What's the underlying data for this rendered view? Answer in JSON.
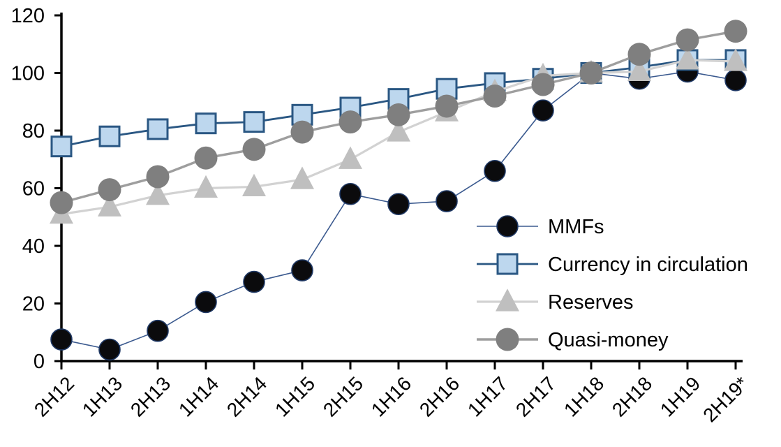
{
  "chart_data": {
    "type": "line",
    "title": "",
    "categories": [
      "2H12",
      "1H13",
      "2H13",
      "1H14",
      "2H14",
      "1H15",
      "2H15",
      "1H16",
      "2H16",
      "1H17",
      "2H17",
      "1H18",
      "2H18",
      "1H19",
      "2H19*"
    ],
    "series": [
      {
        "name": "MMFs",
        "marker": "circle",
        "marker_size": 30,
        "marker_fill": "#0b0b0d",
        "marker_edge": "#1f3864",
        "marker_edge_width": 1.6,
        "line_color": "#3b5a8f",
        "line_width": 1.6,
        "values": [
          7.5,
          4,
          10.5,
          20.5,
          27.5,
          31.5,
          58,
          54.5,
          55.5,
          66,
          87,
          100,
          98,
          100.5,
          97.5
        ]
      },
      {
        "name": "Currency in circulation",
        "marker": "square",
        "marker_size": 28,
        "marker_fill": "#bdd7ee",
        "marker_edge": "#2a5783",
        "marker_edge_width": 3,
        "line_color": "#2a5783",
        "line_width": 2.8,
        "values": [
          74.5,
          78,
          80.5,
          82.5,
          83,
          85.5,
          88,
          91,
          94.5,
          96.5,
          98,
          100,
          102,
          104.5,
          104.5
        ]
      },
      {
        "name": "Reserves",
        "marker": "triangle",
        "marker_size": 34,
        "marker_fill": "#bfbfbf",
        "marker_edge": "#bfbfbf",
        "marker_edge_width": 0,
        "line_color": "#d2d2d2",
        "line_width": 3.2,
        "values": [
          51,
          53.5,
          57.5,
          60,
          60.5,
          63,
          70,
          79.5,
          86.5,
          93.5,
          99,
          100,
          100.5,
          104.5,
          104
        ]
      },
      {
        "name": "Quasi-money",
        "marker": "circle",
        "marker_size": 33,
        "marker_fill": "#7f7f7f",
        "marker_edge": "#7f7f7f",
        "marker_edge_width": 0,
        "line_color": "#9e9e9e",
        "line_width": 3.4,
        "values": [
          55,
          59.5,
          64,
          70.5,
          73.5,
          79.5,
          83,
          85.5,
          88.5,
          92,
          96,
          100,
          106.5,
          111.5,
          114.5
        ]
      }
    ],
    "xlabel": "",
    "ylabel": "",
    "y_axis": {
      "min": 0,
      "max": 120,
      "step": 20,
      "tick_labels": [
        "0",
        "20",
        "40",
        "60",
        "80",
        "100",
        "120"
      ]
    },
    "x_axis": {
      "tick_labels": [
        "2H12",
        "1H13",
        "2H13",
        "1H14",
        "2H14",
        "1H15",
        "2H15",
        "1H16",
        "2H16",
        "1H17",
        "2H17",
        "1H18",
        "2H18",
        "1H19",
        "2H19*"
      ],
      "label_rotation_deg": -45
    },
    "legend": {
      "position": "inside-right",
      "entries": [
        "MMFs",
        "Currency in circulation",
        "Reserves",
        "Quasi-money"
      ]
    },
    "grid": "off",
    "axis_color": "#000000"
  }
}
